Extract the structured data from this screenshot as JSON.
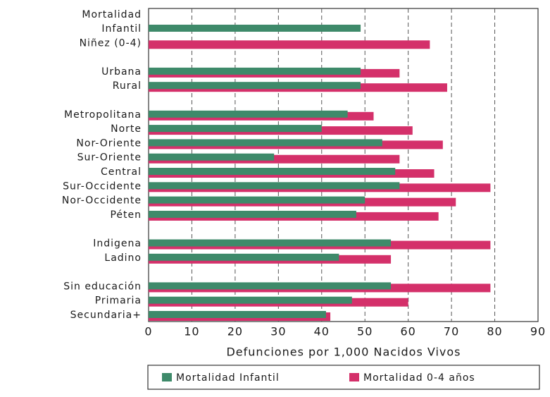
{
  "chart_data": {
    "type": "bar",
    "orientation": "horizontal",
    "categories": [
      "Mortalidad Infantil",
      "Niñez (0-4)",
      null,
      "Urbana",
      "Rural",
      null,
      "Metropolitana",
      "Norte",
      "Nor-Oriente",
      "Sur-Oriente",
      "Central",
      "Sur-Occidente",
      "Nor-Occidente",
      "Péten",
      null,
      "Indigena",
      "Ladino",
      null,
      "Sin educación",
      "Primaria",
      "Secundaria+"
    ],
    "series": [
      {
        "name": "Mortalidad 0-4 años",
        "color": "#d4306a",
        "values": [
          null,
          65,
          null,
          58,
          69,
          null,
          52,
          61,
          68,
          58,
          66,
          79,
          71,
          67,
          null,
          79,
          56,
          null,
          79,
          60,
          42
        ]
      },
      {
        "name": "Mortalidad Infantil",
        "color": "#3e8a6a",
        "values": [
          49,
          null,
          null,
          49,
          49,
          null,
          46,
          40,
          54,
          29,
          57,
          58,
          50,
          48,
          null,
          56,
          44,
          null,
          56,
          47,
          41
        ]
      }
    ],
    "xlabel": "Defunciones por 1,000 Nacidos Vivos",
    "xlim": [
      0,
      90
    ],
    "xticks": [
      0,
      10,
      20,
      30,
      40,
      50,
      60,
      70,
      80,
      90
    ],
    "grid": true
  }
}
